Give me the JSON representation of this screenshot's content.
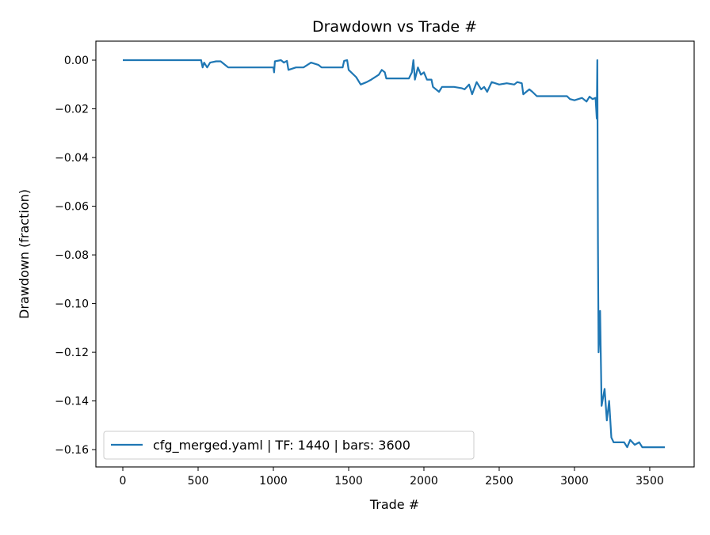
{
  "chart_data": {
    "type": "line",
    "title": "Drawdown vs Trade #",
    "xlabel": "Trade #",
    "ylabel": "Drawdown (fraction)",
    "xlim": [
      -179,
      3795
    ],
    "ylim": [
      -0.1671,
      0.0078
    ],
    "xticks": [
      0,
      500,
      1000,
      1500,
      2000,
      2500,
      3000,
      3500
    ],
    "xtick_labels": [
      "0",
      "500",
      "1000",
      "1500",
      "2000",
      "2500",
      "3000",
      "3500"
    ],
    "yticks": [
      0,
      -0.02,
      -0.04,
      -0.06,
      -0.08,
      -0.1,
      -0.12,
      -0.14,
      -0.16
    ],
    "ytick_labels": [
      "0.00",
      "−0.02",
      "−0.04",
      "−0.06",
      "−0.08",
      "−0.10",
      "−0.12",
      "−0.14",
      "−0.16"
    ],
    "grid": false,
    "legend_placement": "lower-left",
    "series": [
      {
        "name": "cfg_merged.yaml | TF: 1440 | bars: 3600",
        "color": "#1f77b4",
        "x": [
          0,
          520,
          530,
          540,
          560,
          580,
          620,
          650,
          680,
          700,
          1000,
          1005,
          1010,
          1050,
          1070,
          1090,
          1100,
          1150,
          1200,
          1250,
          1300,
          1320,
          1460,
          1470,
          1490,
          1500,
          1550,
          1580,
          1620,
          1650,
          1700,
          1720,
          1740,
          1750,
          1900,
          1920,
          1930,
          1940,
          1960,
          1980,
          2000,
          2020,
          2050,
          2060,
          2100,
          2120,
          2200,
          2250,
          2270,
          2300,
          2320,
          2350,
          2380,
          2400,
          2420,
          2450,
          2500,
          2550,
          2600,
          2620,
          2650,
          2660,
          2700,
          2720,
          2750,
          2950,
          2970,
          3000,
          3050,
          3080,
          3100,
          3120,
          3140,
          3148,
          3152,
          3156,
          3160,
          3170,
          3180,
          3200,
          3215,
          3230,
          3245,
          3260,
          3330,
          3350,
          3370,
          3400,
          3430,
          3450,
          3600
        ],
        "y": [
          0,
          0,
          -0.003,
          -0.001,
          -0.003,
          -0.001,
          -0.0005,
          -0.0005,
          -0.002,
          -0.003,
          -0.003,
          -0.005,
          -0.0005,
          0,
          -0.001,
          -0.0003,
          -0.004,
          -0.003,
          -0.003,
          -0.001,
          -0.002,
          -0.003,
          -0.003,
          -0.0003,
          0,
          -0.004,
          -0.007,
          -0.01,
          -0.009,
          -0.008,
          -0.006,
          -0.004,
          -0.005,
          -0.0075,
          -0.0075,
          -0.005,
          0,
          -0.008,
          -0.003,
          -0.006,
          -0.005,
          -0.008,
          -0.008,
          -0.011,
          -0.013,
          -0.011,
          -0.011,
          -0.0115,
          -0.012,
          -0.01,
          -0.014,
          -0.009,
          -0.012,
          -0.011,
          -0.013,
          -0.009,
          -0.01,
          -0.0095,
          -0.01,
          -0.009,
          -0.0095,
          -0.014,
          -0.012,
          -0.013,
          -0.0148,
          -0.0148,
          -0.016,
          -0.0165,
          -0.0155,
          -0.017,
          -0.015,
          -0.016,
          -0.0155,
          -0.024,
          0,
          -0.075,
          -0.12,
          -0.103,
          -0.142,
          -0.135,
          -0.148,
          -0.14,
          -0.155,
          -0.157,
          -0.157,
          -0.159,
          -0.156,
          -0.158,
          -0.157,
          -0.159,
          -0.159
        ]
      }
    ]
  }
}
